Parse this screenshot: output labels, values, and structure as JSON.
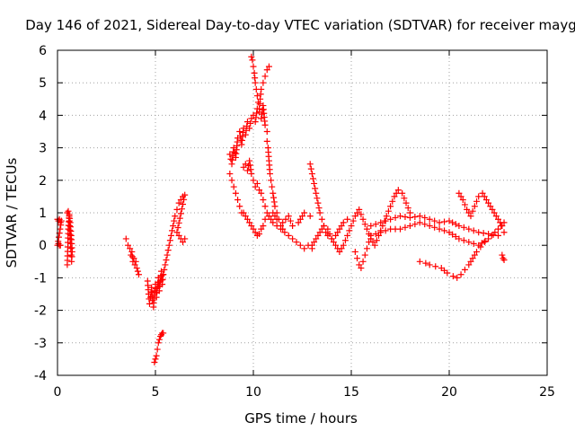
{
  "chart_data": {
    "type": "scatter",
    "title": "Day 146 of 2021, Sidereal Day-to-day VTEC variation (SDTVAR) for receiver mayg",
    "xlabel": "GPS time / hours",
    "ylabel": "SDTVAR / TECUs",
    "xlim": [
      0,
      25
    ],
    "ylim": [
      -4,
      6
    ],
    "x_ticks": [
      0,
      5,
      10,
      15,
      20,
      25
    ],
    "y_ticks": [
      -4,
      -3,
      -2,
      -1,
      0,
      1,
      2,
      3,
      4,
      5,
      6
    ],
    "grid": true,
    "marker": "+",
    "series": [
      {
        "name": "SDTVAR",
        "color": "#ff0000",
        "segments": [
          {
            "x": [
              0.0,
              0.05,
              0.1,
              0.15,
              0.2,
              0.0,
              0.05,
              0.1,
              0.15
            ],
            "y": [
              0.8,
              0.75,
              0.8,
              0.7,
              0.75,
              0.0,
              0.05,
              0.0,
              0.0
            ]
          },
          {
            "x": [
              0.5,
              0.55,
              0.6,
              0.62,
              0.65,
              0.68,
              0.7,
              0.72,
              0.75,
              0.7,
              0.65,
              0.6,
              0.55,
              0.5
            ],
            "y": [
              1.0,
              1.05,
              0.9,
              0.6,
              0.2,
              -0.1,
              -0.3,
              -0.5,
              -0.2,
              0.3,
              0.7,
              0.95,
              0.5,
              -0.6
            ]
          },
          {
            "x": [
              3.5,
              3.6,
              3.7,
              3.75,
              3.8,
              3.85,
              3.9,
              3.95,
              4.0,
              4.05,
              4.1,
              4.15
            ],
            "y": [
              0.2,
              0.0,
              -0.1,
              -0.3,
              -0.2,
              -0.5,
              -0.4,
              -0.6,
              -0.5,
              -0.7,
              -0.8,
              -0.9
            ]
          },
          {
            "x": [
              4.6,
              4.65,
              4.7,
              4.75,
              4.8,
              4.85,
              4.9,
              4.95,
              5.0,
              5.05,
              5.1,
              5.15,
              5.2,
              5.25,
              5.3,
              5.35,
              5.4
            ],
            "y": [
              -1.1,
              -1.5,
              -1.8,
              -1.6,
              -1.3,
              -1.7,
              -1.9,
              -1.4,
              -1.2,
              -1.6,
              -1.3,
              -1.0,
              -1.4,
              -1.1,
              -0.8,
              -1.2,
              -0.9
            ]
          },
          {
            "x": [
              4.95,
              5.0,
              5.05,
              5.1,
              5.15,
              5.2,
              5.25,
              5.3,
              5.35,
              5.4
            ],
            "y": [
              -3.6,
              -3.5,
              -3.4,
              -3.2,
              -3.0,
              -2.9,
              -2.8,
              -2.75,
              -2.7,
              -2.7
            ]
          },
          {
            "x": [
              5.4,
              5.5,
              5.6,
              5.7,
              5.8,
              5.9,
              6.0,
              6.1,
              6.2,
              6.3,
              6.4,
              6.5,
              6.1,
              6.2,
              6.3,
              6.4,
              6.5
            ],
            "y": [
              -0.9,
              -0.6,
              -0.3,
              0.0,
              0.3,
              0.6,
              0.9,
              1.1,
              1.3,
              1.4,
              1.5,
              1.55,
              0.4,
              0.3,
              0.2,
              0.1,
              0.2
            ]
          },
          {
            "x": [
              8.8,
              8.9,
              9.0,
              9.1,
              9.2,
              9.3,
              9.4,
              9.5,
              9.6,
              9.7,
              9.8,
              9.9,
              10.0,
              10.1,
              10.2,
              10.3,
              10.4,
              10.5,
              10.6,
              10.7
            ],
            "y": [
              2.8,
              2.5,
              3.0,
              2.7,
              3.3,
              3.5,
              3.1,
              3.6,
              3.4,
              3.8,
              3.6,
              3.9,
              4.0,
              3.8,
              4.2,
              4.1,
              3.9,
              4.3,
              3.7,
              3.5
            ]
          },
          {
            "x": [
              8.8,
              8.9,
              9.0,
              9.1,
              9.2,
              9.3,
              9.4,
              9.5,
              9.6,
              9.7,
              9.8,
              9.9,
              10.0,
              10.1,
              10.2,
              10.3,
              10.4,
              10.5,
              10.6,
              10.8,
              11.0,
              11.2,
              11.5,
              11.8,
              12.0,
              12.3,
              12.6,
              12.9
            ],
            "y": [
              2.2,
              2.0,
              1.8,
              1.6,
              1.4,
              1.2,
              1.0,
              1.0,
              0.9,
              0.8,
              0.7,
              0.6,
              0.5,
              0.4,
              0.3,
              0.35,
              0.5,
              0.6,
              0.8,
              0.9,
              1.0,
              0.8,
              0.7,
              0.9,
              0.6,
              0.7,
              1.0,
              0.9
            ]
          },
          {
            "x": [
              9.5,
              9.6,
              9.7,
              9.8,
              9.9,
              10.0,
              10.1,
              10.2,
              10.3,
              10.4,
              10.5,
              10.6,
              10.7,
              10.8,
              10.9,
              11.0,
              11.2,
              11.4,
              11.6,
              11.8,
              12.0,
              12.2,
              12.4,
              12.6,
              12.8,
              13.0
            ],
            "y": [
              2.4,
              2.5,
              2.3,
              2.6,
              2.2,
              2.0,
              1.8,
              1.9,
              1.7,
              1.6,
              1.4,
              1.2,
              1.0,
              0.9,
              0.8,
              0.7,
              0.6,
              0.5,
              0.4,
              0.3,
              0.2,
              0.1,
              0.0,
              -0.1,
              0.0,
              -0.1
            ]
          },
          {
            "x": [
              9.9,
              9.95,
              10.0,
              10.05,
              10.1,
              10.15,
              10.2,
              10.25,
              10.3,
              10.35,
              10.4,
              10.5,
              10.6,
              10.7,
              10.8
            ],
            "y": [
              5.8,
              5.7,
              5.5,
              5.3,
              5.0,
              4.8,
              4.6,
              4.4,
              4.2,
              4.5,
              4.8,
              5.0,
              5.2,
              5.4,
              5.5
            ]
          },
          {
            "x": [
              10.7,
              10.75,
              10.8,
              10.85,
              10.9,
              10.95,
              11.0,
              11.1,
              11.2,
              11.3,
              11.4,
              11.5
            ],
            "y": [
              3.2,
              3.0,
              2.6,
              2.2,
              2.0,
              1.8,
              1.6,
              1.2,
              1.0,
              0.8,
              0.6,
              0.5
            ]
          },
          {
            "x": [
              12.9,
              13.0,
              13.1,
              13.2,
              13.3,
              13.4,
              13.5,
              13.6,
              13.7,
              13.8,
              14.0,
              14.2,
              14.4,
              14.6,
              14.8
            ],
            "y": [
              2.5,
              2.2,
              1.9,
              1.6,
              1.3,
              1.0,
              0.8,
              0.6,
              0.4,
              0.3,
              0.2,
              0.3,
              0.5,
              0.7,
              0.8
            ]
          },
          {
            "x": [
              13.0,
              13.2,
              13.4,
              13.6,
              13.8,
              14.0,
              14.2,
              14.4,
              14.6,
              14.8,
              15.0,
              15.2,
              15.4,
              15.6,
              15.8,
              16.0,
              16.2,
              16.4,
              16.6,
              16.8,
              17.0,
              17.2,
              17.4,
              17.6,
              17.8,
              18.0
            ],
            "y": [
              0.0,
              0.2,
              0.4,
              0.6,
              0.5,
              0.2,
              0.0,
              -0.2,
              0.0,
              0.3,
              0.6,
              0.9,
              1.1,
              0.8,
              0.5,
              0.2,
              0.0,
              0.3,
              0.6,
              0.9,
              1.2,
              1.5,
              1.7,
              1.6,
              1.3,
              1.0
            ]
          },
          {
            "x": [
              15.2,
              15.3,
              15.4,
              15.5,
              15.6,
              15.7,
              15.8,
              15.9,
              16.0
            ],
            "y": [
              -0.2,
              -0.4,
              -0.6,
              -0.7,
              -0.5,
              -0.3,
              -0.1,
              0.1,
              0.2
            ]
          },
          {
            "x": [
              16.0,
              16.5,
              17.0,
              17.5,
              18.0,
              18.5,
              19.0,
              19.5,
              20.0,
              20.5,
              21.0,
              21.5,
              22.0,
              22.5,
              22.8
            ],
            "y": [
              0.6,
              0.7,
              0.8,
              0.9,
              0.85,
              0.9,
              0.8,
              0.7,
              0.75,
              0.6,
              0.5,
              0.4,
              0.35,
              0.3,
              0.4
            ]
          },
          {
            "x": [
              16.0,
              16.5,
              17.0,
              17.5,
              18.0,
              18.5,
              19.0,
              19.5,
              20.0,
              20.5,
              21.0,
              21.5,
              22.0,
              22.5,
              22.8
            ],
            "y": [
              0.3,
              0.4,
              0.5,
              0.5,
              0.6,
              0.7,
              0.6,
              0.5,
              0.4,
              0.2,
              0.1,
              0.0,
              0.2,
              0.5,
              0.7
            ]
          },
          {
            "x": [
              18.5,
              18.8,
              19.0,
              19.3,
              19.6,
              19.9,
              20.2,
              20.4,
              20.6,
              20.8,
              21.0,
              21.2,
              21.4,
              21.6,
              21.8
            ],
            "y": [
              -0.5,
              -0.55,
              -0.6,
              -0.65,
              -0.7,
              -0.85,
              -0.95,
              -1.0,
              -0.9,
              -0.75,
              -0.6,
              -0.4,
              -0.2,
              -0.05,
              0.1
            ]
          },
          {
            "x": [
              20.5,
              20.7,
              20.9,
              21.1,
              21.3,
              21.5,
              21.7,
              21.9,
              22.1,
              22.3,
              22.5,
              22.7
            ],
            "y": [
              1.6,
              1.4,
              1.1,
              0.9,
              1.2,
              1.5,
              1.6,
              1.4,
              1.2,
              1.0,
              0.8,
              0.6
            ]
          },
          {
            "x": [
              22.7,
              22.75,
              22.8
            ],
            "y": [
              -0.3,
              -0.4,
              -0.45
            ]
          }
        ]
      }
    ]
  }
}
